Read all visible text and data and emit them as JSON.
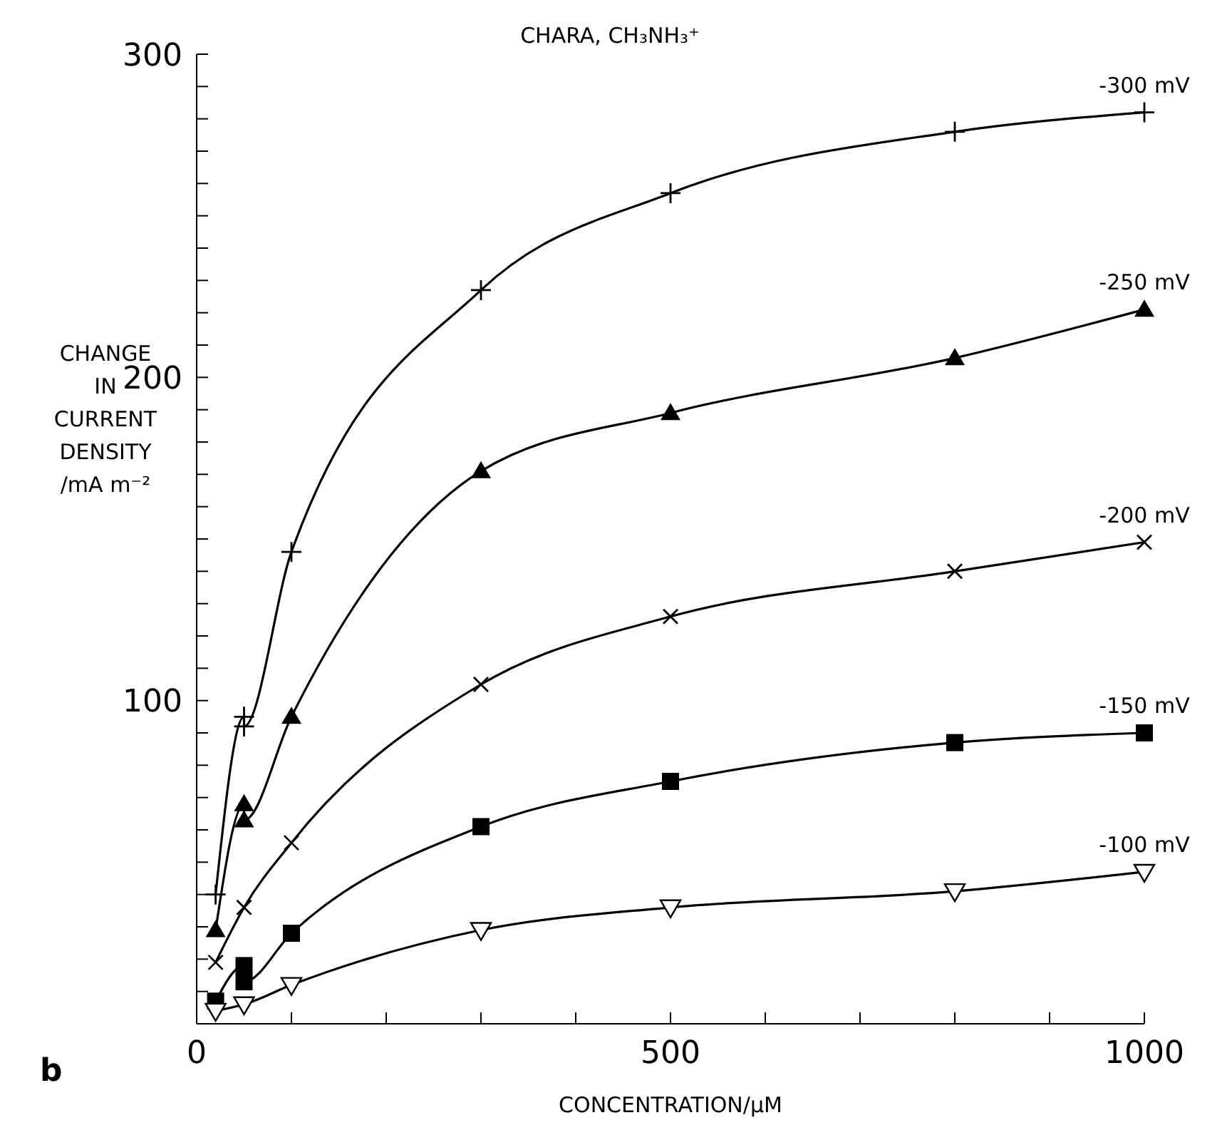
{
  "chart_data": {
    "type": "line",
    "title": "CHARA, CH₃NH₃⁺",
    "xlabel": "CONCENTRATION/μM",
    "ylabel": "CHANGE\nIN\nCURRENT\nDENSITY\n/mA m⁻²",
    "annotations": [
      "b"
    ],
    "xlim": [
      0,
      1000
    ],
    "ylim": [
      0,
      300
    ],
    "xticks": [
      0,
      {
        "value": 100,
        "label": null
      },
      {
        "value": 200,
        "label": null
      },
      {
        "value": 300,
        "label": null
      },
      {
        "value": 400,
        "label": null
      },
      500,
      {
        "value": 600,
        "label": null
      },
      {
        "value": 700,
        "label": null
      },
      {
        "value": 800,
        "label": null
      },
      {
        "value": 900,
        "label": null
      },
      1000
    ],
    "yticks": [
      {
        "value": 0,
        "label": null
      },
      {
        "value": 10,
        "label": null
      },
      {
        "value": 20,
        "label": null
      },
      {
        "value": 30,
        "label": null
      },
      {
        "value": 40,
        "label": null
      },
      {
        "value": 50,
        "label": null
      },
      {
        "value": 60,
        "label": null
      },
      {
        "value": 70,
        "label": null
      },
      {
        "value": 80,
        "label": null
      },
      {
        "value": 90,
        "label": null
      },
      100,
      {
        "value": 110,
        "label": null
      },
      {
        "value": 120,
        "label": null
      },
      {
        "value": 130,
        "label": null
      },
      {
        "value": 140,
        "label": null
      },
      {
        "value": 150,
        "label": null
      },
      {
        "value": 160,
        "label": null
      },
      {
        "value": 170,
        "label": null
      },
      {
        "value": 180,
        "label": null
      },
      {
        "value": 190,
        "label": null
      },
      200,
      {
        "value": 210,
        "label": null
      },
      {
        "value": 220,
        "label": null
      },
      {
        "value": 230,
        "label": null
      },
      {
        "value": 240,
        "label": null
      },
      {
        "value": 250,
        "label": null
      },
      {
        "value": 260,
        "label": null
      },
      {
        "value": 270,
        "label": null
      },
      {
        "value": 280,
        "label": null
      },
      {
        "value": 290,
        "label": null
      },
      300
    ],
    "line_style": "solid",
    "series": [
      {
        "name": "-300 mV",
        "color": "#000000",
        "marker": "cross",
        "x": [
          20,
          50,
          50,
          100,
          300,
          500,
          800,
          1000
        ],
        "values": [
          40,
          95,
          92,
          146,
          227,
          257,
          276,
          282
        ]
      },
      {
        "name": "-250 mV",
        "color": "#000000",
        "marker": "triangle",
        "x": [
          20,
          50,
          50,
          100,
          300,
          500,
          800,
          1000
        ],
        "values": [
          29,
          68,
          63,
          95,
          171,
          189,
          206,
          221
        ]
      },
      {
        "name": "-200 mV",
        "color": "#000000",
        "marker": "x",
        "x": [
          20,
          50,
          100,
          300,
          500,
          800,
          1000
        ],
        "values": [
          19,
          36,
          56,
          105,
          126,
          140,
          149
        ]
      },
      {
        "name": "-150 mV",
        "color": "#000000",
        "marker": "square",
        "x": [
          20,
          50,
          50,
          100,
          300,
          500,
          800,
          1000
        ],
        "values": [
          7,
          18,
          13,
          28,
          61,
          75,
          87,
          90
        ]
      },
      {
        "name": "-100 mV",
        "color": "#000000",
        "marker": "triangle-down",
        "x": [
          20,
          50,
          100,
          300,
          500,
          800,
          1000
        ],
        "values": [
          4,
          6,
          12,
          29,
          36,
          41,
          47
        ]
      }
    ]
  }
}
